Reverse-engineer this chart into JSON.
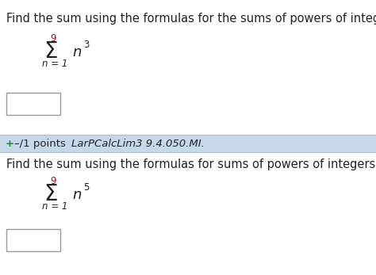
{
  "bg_color": "#ffffff",
  "header_bg": "#c5d9e8",
  "text1": "Find the sum using the formulas for the sums of powers of integers.",
  "text2": "Find the sum using the formulas for sums of powers of integers.",
  "sigma1_upper": "9",
  "sigma1_lower": "n = 1",
  "sigma1_body": "n",
  "sigma1_exp": "3",
  "sigma2_upper": "9",
  "sigma2_lower": "n = 1",
  "sigma2_body": "n",
  "sigma2_exp": "5",
  "red_color": "#cc0000",
  "green_color": "#228B22",
  "black_color": "#222222",
  "gray_color": "#999999",
  "font_size_main": 10.5,
  "font_size_sigma": 20,
  "font_size_super": 8.5,
  "font_size_body": 13,
  "font_size_lower": 8.5,
  "font_size_header": 9.5
}
